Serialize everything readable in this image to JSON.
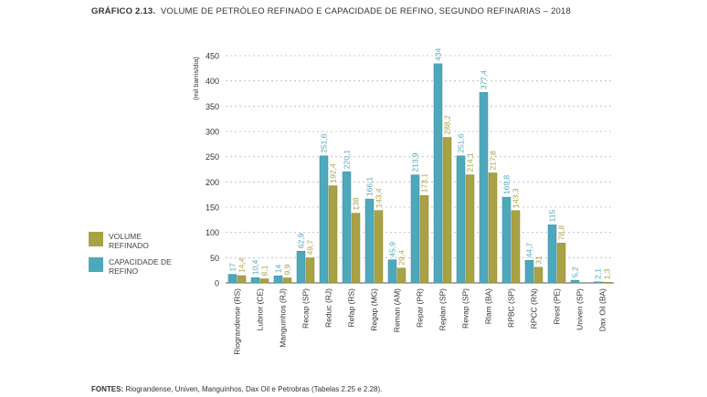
{
  "title_bold": "GRÁFICO 2.13.",
  "title_text": "VOLUME DE PETRÓLEO REFINADO E CAPACIDADE DE REFINO, SEGUNDO REFINARIAS – 2018",
  "sources_bold": "FONTES:",
  "sources_text": "Riograndense, Univen, Manguinhos, Dax Oil e Petrobras (Tabelas 2.25 e 2.28).",
  "legend": [
    {
      "label": "VOLUME REFINADO",
      "color": "#a9a245"
    },
    {
      "label": "CAPACIDADE DE REFINO",
      "color": "#4ea8bc"
    }
  ],
  "chart_data": {
    "type": "bar",
    "ylabel": "(mil barris/dia)",
    "ylim": [
      0,
      450
    ],
    "yticks": [
      0,
      50,
      100,
      150,
      200,
      250,
      300,
      350,
      400,
      450
    ],
    "grid": true,
    "legend_position": "left",
    "categories": [
      "Riograndense (RS)",
      "Lubnor (CE)",
      "Manguinhos (RJ)",
      "Recap (SP)",
      "Reduc (RJ)",
      "Refap (RS)",
      "Regap (MG)",
      "Reman (AM)",
      "Repar (PR)",
      "Replan (SP)",
      "Revap (SP)",
      "Rlam (BA)",
      "RPBC (SP)",
      "RPCC (RN)",
      "Rrest (PE)",
      "Univen (SP)",
      "Dax Oil (BA)"
    ],
    "series": [
      {
        "name": "CAPACIDADE DE REFINO",
        "color": "#4ea8bc",
        "values": [
          17,
          10.4,
          14,
          62.9,
          251.6,
          220.1,
          166.1,
          45.9,
          213.9,
          434,
          251.6,
          377.4,
          169.8,
          44.7,
          115,
          5.2,
          2.1
        ],
        "labels": [
          "17",
          "10,4",
          "14",
          "62,9",
          "251,6",
          "220,1",
          "166,1",
          "45,9",
          "213,9",
          "434",
          "251,6",
          "377,4",
          "169,8",
          "44,7",
          "115",
          "5,2",
          "2,1"
        ]
      },
      {
        "name": "VOLUME REFINADO",
        "color": "#a9a245",
        "values": [
          14.4,
          8.1,
          9.9,
          49.7,
          192.4,
          138,
          143.4,
          29.4,
          173.1,
          288.2,
          214.1,
          217.8,
          143.3,
          31,
          78.8,
          null,
          1.3
        ],
        "labels": [
          "14,4",
          "8,1",
          "9,9",
          "49,7",
          "192,4",
          "138",
          "143,4",
          "29,4",
          "173,1",
          "288,2",
          "214,1",
          "217,8",
          "143,3",
          "31",
          "78,8",
          "",
          "1,3"
        ]
      }
    ]
  }
}
